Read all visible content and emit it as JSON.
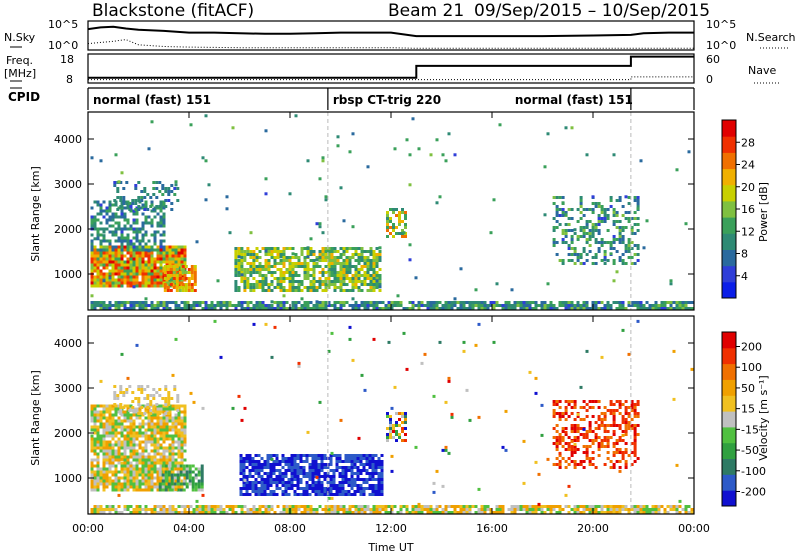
{
  "header": {
    "radar": "Blackstone (fitACF)",
    "beam": "Beam 21",
    "date_range": "09/Sep/2015 – 10/Sep/2015"
  },
  "chart_data": [
    {
      "type": "line",
      "panel": "sky-search",
      "left_label": "N.Sky",
      "right_label": "N.Search",
      "left_ticks": [
        "10^5",
        "10^0"
      ],
      "right_ticks": [
        "10^5",
        "10^0"
      ],
      "series": [
        {
          "style": "solid",
          "x": [
            0,
            0.5,
            1,
            1.5,
            2,
            3,
            4,
            5,
            6,
            7,
            8,
            9,
            10,
            11,
            12,
            13,
            14,
            16,
            18,
            20,
            21.5,
            22,
            23,
            24
          ],
          "y": [
            0.72,
            0.78,
            0.8,
            0.74,
            0.7,
            0.66,
            0.6,
            0.6,
            0.58,
            0.56,
            0.56,
            0.58,
            0.6,
            0.6,
            0.6,
            0.48,
            0.48,
            0.48,
            0.48,
            0.5,
            0.52,
            0.58,
            0.6,
            0.6
          ]
        },
        {
          "style": "dotted",
          "x": [
            0,
            1,
            1.5,
            2,
            3,
            4,
            6,
            8,
            10,
            12,
            13,
            16,
            18,
            20,
            22,
            24
          ],
          "y": [
            0.22,
            0.3,
            0.36,
            0.18,
            0.12,
            0.1,
            0.08,
            0.08,
            0.08,
            0.08,
            0.06,
            0.06,
            0.06,
            0.06,
            0.06,
            0.06
          ]
        }
      ]
    },
    {
      "type": "line",
      "panel": "freq-nave",
      "left_label": "Freq.",
      "left_unit": "[MHz]",
      "right_label": "Nave",
      "left_ticks": [
        "18",
        "8"
      ],
      "right_ticks": [
        "60",
        "0"
      ],
      "series": [
        {
          "style": "solid",
          "x": [
            0,
            13,
            13,
            21.5,
            21.5,
            24
          ],
          "y": [
            10,
            10,
            14.5,
            14.5,
            18,
            18
          ]
        },
        {
          "style": "dotted",
          "x": [
            0,
            13,
            13,
            21.5,
            21.5,
            24
          ],
          "y": [
            9.3,
            9.3,
            9.3,
            9.3,
            10.3,
            10.3
          ]
        }
      ]
    },
    {
      "type": "table",
      "panel": "cpid",
      "label": "CPID",
      "segments": [
        {
          "name": "normal (fast) 151",
          "start": 0,
          "end": 9.5
        },
        {
          "name": "rbsp CT-trig 220",
          "start": 9.5,
          "end": 21.5
        },
        {
          "name": "normal (fast) 151",
          "start": 21.5,
          "end": 24
        }
      ]
    },
    {
      "type": "heatmap",
      "panel": "power",
      "ylabel": "Slant Range [km]",
      "yticks": [
        1000,
        2000,
        3000,
        4000
      ],
      "ylim": [
        200,
        4600
      ],
      "xlim": [
        0,
        24
      ],
      "colorbar_label": "Power [dB]",
      "colorbar_ticks": [
        4,
        8,
        12,
        16,
        20,
        24,
        28
      ],
      "colorbar_range": [
        0,
        32
      ],
      "colorscale": [
        "#0b1ee8",
        "#2f3ed8",
        "#2a6a9e",
        "#2e8a74",
        "#3aa05a",
        "#7fc040",
        "#c8d000",
        "#f0b000",
        "#f07000",
        "#f03000",
        "#e00000"
      ],
      "regions": [
        {
          "x0": 0.1,
          "x1": 3.8,
          "y0": 700,
          "y1": 1600,
          "density": 0.95,
          "v": [
            12,
            32
          ]
        },
        {
          "x0": 0.1,
          "x1": 3.0,
          "y0": 1500,
          "y1": 2600,
          "density": 0.55,
          "v": [
            4,
            14
          ]
        },
        {
          "x0": 1.0,
          "x1": 3.6,
          "y0": 2400,
          "y1": 3000,
          "density": 0.3,
          "v": [
            4,
            12
          ]
        },
        {
          "x0": 3.0,
          "x1": 4.2,
          "y0": 600,
          "y1": 1200,
          "density": 0.8,
          "v": [
            16,
            30
          ]
        },
        {
          "x0": 5.8,
          "x1": 11.6,
          "y0": 600,
          "y1": 1600,
          "density": 0.75,
          "v": [
            8,
            22
          ]
        },
        {
          "x0": 11.8,
          "x1": 12.6,
          "y0": 1800,
          "y1": 2400,
          "density": 0.6,
          "v": [
            8,
            26
          ]
        },
        {
          "x0": 18.4,
          "x1": 21.8,
          "y0": 1200,
          "y1": 2700,
          "density": 0.35,
          "v": [
            4,
            16
          ]
        },
        {
          "x0": 0.1,
          "x1": 23.9,
          "y0": 200,
          "y1": 350,
          "density": 0.8,
          "v": [
            4,
            16
          ]
        },
        {
          "x0": 0.1,
          "x1": 23.9,
          "y0": 350,
          "y1": 4500,
          "density": 0.01,
          "v": [
            4,
            16
          ]
        }
      ]
    },
    {
      "type": "heatmap",
      "panel": "velocity",
      "ylabel": "Slant Range [km]",
      "xlabel": "Time UT",
      "yticks": [
        1000,
        2000,
        3000,
        4000
      ],
      "ylim": [
        200,
        4600
      ],
      "xlim": [
        0,
        24
      ],
      "xticks": [
        "00:00",
        "04:00",
        "08:00",
        "12:00",
        "16:00",
        "20:00",
        "00:00"
      ],
      "colorbar_label": "Velocity [m s⁻¹]",
      "colorbar_ticks": [
        "200",
        "100",
        "50",
        "15",
        "-15",
        "-50",
        "-100",
        "-200"
      ],
      "colorscale": [
        "#1010d0",
        "#2d5ac8",
        "#2e7a64",
        "#30a040",
        "#50c040",
        "#c0c0c0",
        "#f0c020",
        "#f0a000",
        "#f07000",
        "#f03000",
        "#e00000"
      ],
      "regions": [
        {
          "x0": 0.1,
          "x1": 3.8,
          "y0": 700,
          "y1": 2600,
          "density": 0.85,
          "c": [
            4,
            7
          ]
        },
        {
          "x0": 1.0,
          "x1": 3.6,
          "y0": 2400,
          "y1": 3000,
          "density": 0.35,
          "c": [
            5,
            6
          ]
        },
        {
          "x0": 2.8,
          "x1": 4.5,
          "y0": 700,
          "y1": 1300,
          "density": 0.7,
          "c": [
            2,
            5
          ]
        },
        {
          "x0": 6.0,
          "x1": 11.6,
          "y0": 600,
          "y1": 1500,
          "density": 0.8,
          "c": [
            0,
            1
          ]
        },
        {
          "x0": 11.8,
          "x1": 12.6,
          "y0": 1800,
          "y1": 2400,
          "density": 0.6,
          "c": [
            0,
            10
          ]
        },
        {
          "x0": 18.4,
          "x1": 21.8,
          "y0": 1200,
          "y1": 2700,
          "density": 0.45,
          "c": [
            8,
            10
          ]
        },
        {
          "x0": 0.1,
          "x1": 23.9,
          "y0": 200,
          "y1": 380,
          "density": 0.8,
          "c": [
            4,
            7
          ]
        },
        {
          "x0": 0.1,
          "x1": 23.9,
          "y0": 380,
          "y1": 4500,
          "density": 0.01,
          "c": [
            0,
            10
          ]
        }
      ]
    }
  ]
}
